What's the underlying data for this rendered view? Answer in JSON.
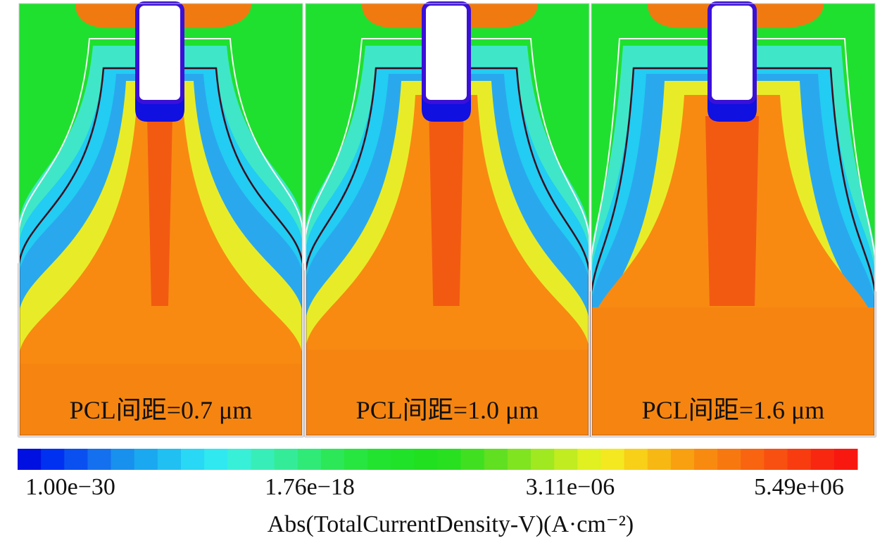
{
  "panels": [
    {
      "label": "PCL间距=0.7 μm"
    },
    {
      "label": "PCL间距=1.0 μm"
    },
    {
      "label": "PCL间距=1.6 μm"
    }
  ],
  "colorbar": {
    "tick_labels": [
      "1.00e−30",
      "1.76e−18",
      "3.11e−06",
      "5.49e+06"
    ],
    "title": "Abs(TotalCurrentDensity-V)(A·cm⁻²)"
  }
}
